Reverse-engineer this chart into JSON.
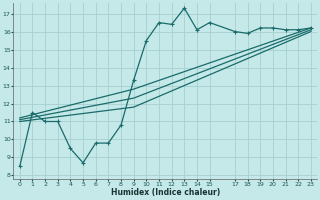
{
  "xlabel": "Humidex (Indice chaleur)",
  "bg_color": "#c5e8e8",
  "grid_color": "#a8d0d0",
  "line_color": "#1a6b6b",
  "xlim": [
    -0.5,
    23.5
  ],
  "ylim": [
    7.8,
    17.6
  ],
  "yticks": [
    8,
    9,
    10,
    11,
    12,
    13,
    14,
    15,
    16,
    17
  ],
  "xticks": [
    0,
    1,
    2,
    3,
    4,
    5,
    6,
    7,
    8,
    9,
    10,
    11,
    12,
    13,
    14,
    15,
    17,
    18,
    19,
    20,
    21,
    22,
    23
  ],
  "line1_x": [
    0,
    1,
    2,
    3,
    4,
    5,
    6,
    7,
    8,
    9,
    10,
    11,
    12,
    13,
    14,
    15,
    17,
    18,
    19,
    20,
    21,
    22,
    23
  ],
  "line1_y": [
    8.5,
    11.5,
    11.0,
    11.0,
    9.5,
    8.7,
    9.8,
    9.8,
    10.8,
    13.3,
    15.5,
    16.5,
    16.4,
    17.3,
    16.1,
    16.5,
    16.0,
    15.9,
    16.2,
    16.2,
    16.1,
    16.1,
    16.2
  ],
  "line2_x": [
    0,
    9,
    23
  ],
  "line2_y": [
    11.2,
    12.8,
    16.2
  ],
  "line3_x": [
    0,
    9,
    23
  ],
  "line3_y": [
    11.1,
    12.3,
    16.1
  ],
  "line4_x": [
    0,
    9,
    23
  ],
  "line4_y": [
    11.0,
    11.8,
    16.0
  ]
}
